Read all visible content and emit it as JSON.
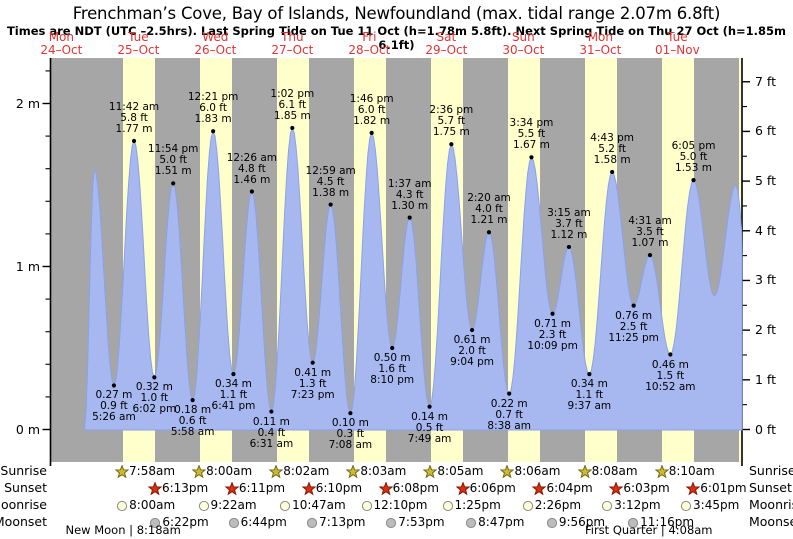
{
  "title": "Frenchman’s Cove, Bay of Islands, Newfoundland (max. tidal range 2.07m 6.8ft)",
  "subtitle": "Times are NDT (UTC –2.5hrs). Last Spring Tide on Tue 11 Oct (h=1.78m 5.8ft). Next Spring Tide on Thu 27 Oct (h=1.85m 6.1ft)",
  "colors": {
    "day_label_red": "#e03434",
    "night_band": "#a6a6a6",
    "daylight_band": "#ffffcc",
    "tide_fill": "#a7b8f0",
    "tide_stroke": "#8ba2e8",
    "sunrise_star": "#cdbb2f",
    "sunrise_star_edge": "#6f6816",
    "sunset_star": "#dd2c10",
    "sunset_star_edge": "#7e1a02",
    "moonrise_circle": "#ffffd8",
    "moonset_circle": "#bcbcbc",
    "circle_edge": "#8a8a8a"
  },
  "chart_data": {
    "type": "area",
    "title": "Frenchman’s Cove, Bay of Islands, Newfoundland (max. tidal range 2.07m 6.8ft)",
    "subtitle": "Times are NDT (UTC –2.5hrs). Last Spring Tide on Tue 11 Oct (h=1.78m 5.8ft). Next Spring Tide on Thu 27 Oct (h=1.85m 6.1ft)",
    "x_days": [
      {
        "name": "Mon",
        "date": "24–Oct"
      },
      {
        "name": "Tue",
        "date": "25–Oct"
      },
      {
        "name": "Wed",
        "date": "26–Oct"
      },
      {
        "name": "Thu",
        "date": "27–Oct"
      },
      {
        "name": "Fri",
        "date": "28–Oct"
      },
      {
        "name": "Sat",
        "date": "29–Oct"
      },
      {
        "name": "Sun",
        "date": "30–Oct"
      },
      {
        "name": "Mon",
        "date": "31–Oct"
      },
      {
        "name": "Tue",
        "date": "01–Nov"
      }
    ],
    "y_axis_left": {
      "unit": "m",
      "major_ticks": [
        0,
        1,
        2
      ],
      "minor_step": 0.2,
      "top_minor": 2.2
    },
    "y_axis_right": {
      "unit": "ft",
      "major_ticks": [
        0,
        1,
        2,
        3,
        4,
        5,
        6,
        7
      ]
    },
    "tide_events": [
      {
        "day": 1,
        "type": "low",
        "time": "5:26 am",
        "height_m": "0.27",
        "height_ft": "0.9"
      },
      {
        "day": 1,
        "type": "high",
        "time": "11:42 am",
        "height_m": "1.77",
        "height_ft": "5.8"
      },
      {
        "day": 1,
        "type": "low",
        "time": "6:02 pm",
        "height_m": "0.32",
        "height_ft": "1.0"
      },
      {
        "day": 1,
        "type": "high",
        "time": "11:54 pm",
        "height_m": "1.51",
        "height_ft": "5.0"
      },
      {
        "day": 2,
        "type": "low",
        "time": "5:58 am",
        "height_m": "0.18",
        "height_ft": "0.6"
      },
      {
        "day": 2,
        "type": "high",
        "time": "12:21 pm",
        "height_m": "1.83",
        "height_ft": "6.0"
      },
      {
        "day": 2,
        "type": "low",
        "time": "6:41 pm",
        "height_m": "0.34",
        "height_ft": "1.1"
      },
      {
        "day": 3,
        "type": "high",
        "time": "12:26 am",
        "height_m": "1.46",
        "height_ft": "4.8"
      },
      {
        "day": 3,
        "type": "low",
        "time": "6:31 am",
        "height_m": "0.11",
        "height_ft": "0.4"
      },
      {
        "day": 3,
        "type": "high",
        "time": "1:02 pm",
        "height_m": "1.85",
        "height_ft": "6.1"
      },
      {
        "day": 3,
        "type": "low",
        "time": "7:23 pm",
        "height_m": "0.41",
        "height_ft": "1.3"
      },
      {
        "day": 4,
        "type": "high",
        "time": "12:59 am",
        "height_m": "1.38",
        "height_ft": "4.5"
      },
      {
        "day": 4,
        "type": "low",
        "time": "7:08 am",
        "height_m": "0.10",
        "height_ft": "0.3"
      },
      {
        "day": 4,
        "type": "high",
        "time": "1:46 pm",
        "height_m": "1.82",
        "height_ft": "6.0"
      },
      {
        "day": 4,
        "type": "low",
        "time": "8:10 pm",
        "height_m": "0.50",
        "height_ft": "1.6"
      },
      {
        "day": 5,
        "type": "high",
        "time": "1:37 am",
        "height_m": "1.30",
        "height_ft": "4.3"
      },
      {
        "day": 5,
        "type": "low",
        "time": "7:49 am",
        "height_m": "0.14",
        "height_ft": "0.5"
      },
      {
        "day": 5,
        "type": "high",
        "time": "2:36 pm",
        "height_m": "1.75",
        "height_ft": "5.7"
      },
      {
        "day": 5,
        "type": "low",
        "time": "9:04 pm",
        "height_m": "0.61",
        "height_ft": "2.0"
      },
      {
        "day": 6,
        "type": "high",
        "time": "2:20 am",
        "height_m": "1.21",
        "height_ft": "4.0"
      },
      {
        "day": 6,
        "type": "low",
        "time": "8:38 am",
        "height_m": "0.22",
        "height_ft": "0.7"
      },
      {
        "day": 6,
        "type": "high",
        "time": "3:34 pm",
        "height_m": "1.67",
        "height_ft": "5.5"
      },
      {
        "day": 6,
        "type": "low",
        "time": "10:09 pm",
        "height_m": "0.71",
        "height_ft": "2.3"
      },
      {
        "day": 7,
        "type": "high",
        "time": "3:15 am",
        "height_m": "1.12",
        "height_ft": "3.7"
      },
      {
        "day": 7,
        "type": "low",
        "time": "9:37 am",
        "height_m": "0.34",
        "height_ft": "1.1"
      },
      {
        "day": 7,
        "type": "high",
        "time": "4:43 pm",
        "height_m": "1.58",
        "height_ft": "5.2"
      },
      {
        "day": 7,
        "type": "low",
        "time": "11:25 pm",
        "height_m": "0.76",
        "height_ft": "2.5"
      },
      {
        "day": 8,
        "type": "high",
        "time": "4:31 am",
        "height_m": "1.07",
        "height_ft": "3.5"
      },
      {
        "day": 8,
        "type": "low",
        "time": "10:52 am",
        "height_m": "0.46",
        "height_ft": "1.5"
      },
      {
        "day": 8,
        "type": "high",
        "time": "6:05 pm",
        "height_m": "1.53",
        "height_ft": "5.0"
      }
    ],
    "curve_edge_points": [
      {
        "day": 0,
        "hour": 20.3,
        "h": 0.02
      },
      {
        "day": 0,
        "hour": 23.3,
        "h": 1.6
      },
      {
        "day": 9,
        "hour": 0.6,
        "h": 0.82
      },
      {
        "day": 9,
        "hour": 7.3,
        "h": 1.5
      },
      {
        "day": 9,
        "hour": 12.0,
        "h": 0.6
      }
    ],
    "sun_moon": {
      "row_labels": [
        "Sunrise",
        "Sunset",
        "Moonrise",
        "Moonset"
      ],
      "rows": [
        {
          "key": "sunrise",
          "label": "Sunrise",
          "icon": "sunrise-star-icon",
          "start_day": 1,
          "times": [
            "7:58am",
            "8:00am",
            "8:02am",
            "8:03am",
            "8:05am",
            "8:06am",
            "8:08am",
            "8:10am"
          ]
        },
        {
          "key": "sunset",
          "label": "Sunset",
          "icon": "sunset-star-icon",
          "start_day": 1,
          "times": [
            "6:13pm",
            "6:11pm",
            "6:10pm",
            "6:08pm",
            "6:06pm",
            "6:04pm",
            "6:03pm",
            "6:01pm"
          ]
        },
        {
          "key": "moonrise",
          "label": "Moonrise",
          "icon": "moonrise-circle-icon",
          "start_day": 1,
          "times": [
            "8:00am",
            "9:22am",
            "10:47am",
            "12:10pm",
            "1:25pm",
            "2:26pm",
            "3:12pm",
            "3:45pm"
          ]
        },
        {
          "key": "moonset",
          "label": "Moonset",
          "icon": "moonset-circle-icon",
          "start_day": 1,
          "times": [
            "6:22pm",
            "6:44pm",
            "7:13pm",
            "7:53pm",
            "8:47pm",
            "9:56pm",
            "11:16pm"
          ]
        }
      ],
      "partial_last_daylight_start": "8:11am"
    },
    "moon_phases": [
      {
        "text": "New Moon | 8:18am",
        "day": 1,
        "hour": 8.3
      },
      {
        "text": "First Quarter | 4:08am",
        "day": 8,
        "hour": 4.13
      }
    ]
  }
}
